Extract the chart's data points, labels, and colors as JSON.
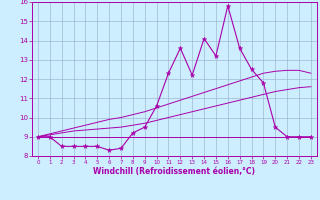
{
  "xlabel": "Windchill (Refroidissement éolien,°C)",
  "bg_color": "#cceeff",
  "line_color": "#aa00aa",
  "grid_color": "#99aacc",
  "x_data": [
    0,
    1,
    2,
    3,
    4,
    5,
    6,
    7,
    8,
    9,
    10,
    11,
    12,
    13,
    14,
    15,
    16,
    17,
    18,
    19,
    20,
    21,
    22,
    23
  ],
  "main_y": [
    9.0,
    9.0,
    8.5,
    8.5,
    8.5,
    8.5,
    8.3,
    8.4,
    9.2,
    9.5,
    10.6,
    12.3,
    13.6,
    12.2,
    14.1,
    13.2,
    15.8,
    13.6,
    12.5,
    11.8,
    9.5,
    9.0,
    9.0,
    9.0
  ],
  "line1_y": [
    9.0,
    9.0,
    9.0,
    9.0,
    9.0,
    9.0,
    9.0,
    9.0,
    9.0,
    9.0,
    9.0,
    9.0,
    9.0,
    9.0,
    9.0,
    9.0,
    9.0,
    9.0,
    9.0,
    9.0,
    9.0,
    9.0,
    9.0,
    9.0
  ],
  "line2_y": [
    9.0,
    9.1,
    9.2,
    9.3,
    9.35,
    9.4,
    9.45,
    9.5,
    9.6,
    9.7,
    9.85,
    10.0,
    10.15,
    10.3,
    10.45,
    10.6,
    10.75,
    10.9,
    11.05,
    11.2,
    11.35,
    11.45,
    11.55,
    11.6
  ],
  "line3_y": [
    9.0,
    9.15,
    9.3,
    9.45,
    9.6,
    9.75,
    9.9,
    10.0,
    10.15,
    10.3,
    10.5,
    10.7,
    10.9,
    11.1,
    11.3,
    11.5,
    11.7,
    11.9,
    12.1,
    12.3,
    12.4,
    12.45,
    12.45,
    12.3
  ],
  "ylim": [
    8,
    16
  ],
  "xlim": [
    -0.5,
    23.5
  ],
  "yticks": [
    8,
    9,
    10,
    11,
    12,
    13,
    14,
    15,
    16
  ],
  "xticks": [
    0,
    1,
    2,
    3,
    4,
    5,
    6,
    7,
    8,
    9,
    10,
    11,
    12,
    13,
    14,
    15,
    16,
    17,
    18,
    19,
    20,
    21,
    22,
    23
  ]
}
